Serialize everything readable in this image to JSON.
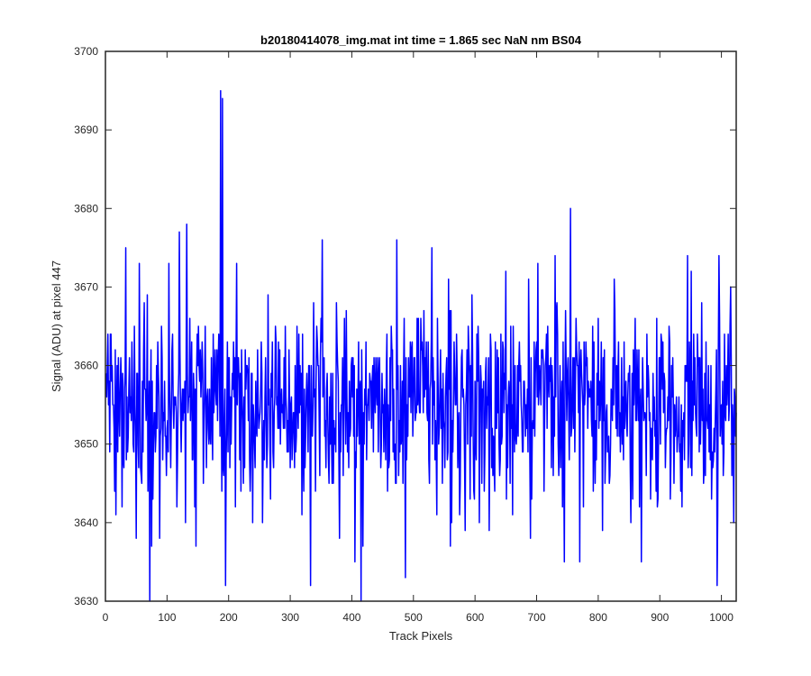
{
  "chart_data": {
    "type": "line",
    "title": "b20180414078_img.mat int time = 1.865 sec  NaN nm BS04",
    "xlabel": "Track Pixels",
    "ylabel": "Signal (ADU) at pixel 447",
    "xlim": [
      0,
      1024
    ],
    "ylim": [
      3630,
      3700
    ],
    "xticks": [
      0,
      100,
      200,
      300,
      400,
      500,
      600,
      700,
      800,
      900,
      1000
    ],
    "yticks": [
      3630,
      3640,
      3650,
      3660,
      3670,
      3680,
      3690,
      3700
    ],
    "grid": false,
    "legend": "none",
    "series": [
      {
        "color": "#0000ff",
        "samples": 1024,
        "x_start": 1,
        "x_step": 1,
        "baseline": 3655,
        "noise_std": 6,
        "seed": 447,
        "spikes": [
          {
            "x": 15,
            "y": 3644
          },
          {
            "x": 30,
            "y": 3647
          },
          {
            "x": 33,
            "y": 3675
          },
          {
            "x": 50,
            "y": 3638
          },
          {
            "x": 55,
            "y": 3673
          },
          {
            "x": 72,
            "y": 3630
          },
          {
            "x": 75,
            "y": 3637
          },
          {
            "x": 88,
            "y": 3638
          },
          {
            "x": 120,
            "y": 3677
          },
          {
            "x": 130,
            "y": 3640
          },
          {
            "x": 132,
            "y": 3678
          },
          {
            "x": 187,
            "y": 3695
          },
          {
            "x": 190,
            "y": 3694
          },
          {
            "x": 195,
            "y": 3632
          },
          {
            "x": 255,
            "y": 3640
          },
          {
            "x": 333,
            "y": 3632
          },
          {
            "x": 352,
            "y": 3676
          },
          {
            "x": 380,
            "y": 3638
          },
          {
            "x": 405,
            "y": 3635
          },
          {
            "x": 415,
            "y": 3630
          },
          {
            "x": 418,
            "y": 3637
          },
          {
            "x": 473,
            "y": 3676
          },
          {
            "x": 487,
            "y": 3633
          },
          {
            "x": 530,
            "y": 3675
          },
          {
            "x": 560,
            "y": 3637
          },
          {
            "x": 650,
            "y": 3672
          },
          {
            "x": 690,
            "y": 3638
          },
          {
            "x": 730,
            "y": 3674
          },
          {
            "x": 745,
            "y": 3635
          },
          {
            "x": 755,
            "y": 3680
          },
          {
            "x": 770,
            "y": 3635
          },
          {
            "x": 870,
            "y": 3635
          },
          {
            "x": 945,
            "y": 3674
          },
          {
            "x": 993,
            "y": 3632
          },
          {
            "x": 996,
            "y": 3674
          },
          {
            "x": 1015,
            "y": 3670
          },
          {
            "x": 1020,
            "y": 3640
          }
        ]
      }
    ]
  }
}
